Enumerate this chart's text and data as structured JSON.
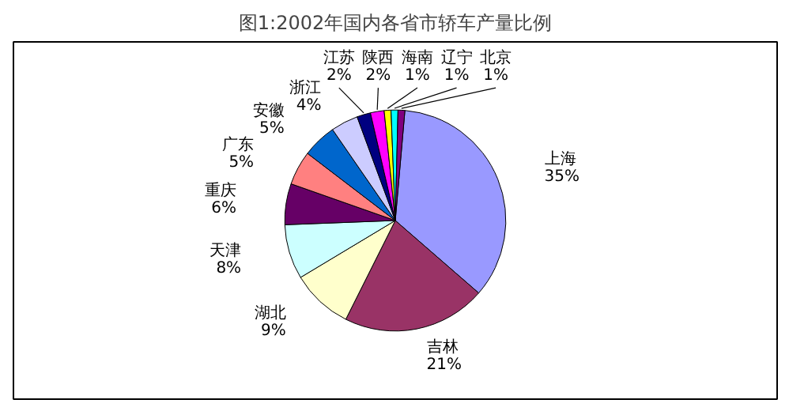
{
  "chart_data": {
    "type": "pie",
    "title": "图1:2002年国内各省市轿车产量比例",
    "categories": [
      "上海",
      "吉林",
      "湖北",
      "天津",
      "重庆",
      "广东",
      "安徽",
      "浙江",
      "江苏",
      "陕西",
      "海南",
      "辽宁",
      "北京"
    ],
    "values": [
      35,
      21,
      9,
      8,
      6,
      5,
      5,
      4,
      2,
      2,
      1,
      1,
      1
    ],
    "value_labels": [
      "35%",
      "21%",
      "9%",
      "8%",
      "6%",
      "5%",
      "5%",
      "4%",
      "2%",
      "2%",
      "1%",
      "1%",
      "1%"
    ],
    "colors": [
      "#9999ff",
      "#993366",
      "#ffffcc",
      "#ccffff",
      "#660066",
      "#ff8080",
      "#0066cc",
      "#ccccff",
      "#000080",
      "#ff00ff",
      "#ffff00",
      "#00ffff",
      "#800080"
    ]
  }
}
